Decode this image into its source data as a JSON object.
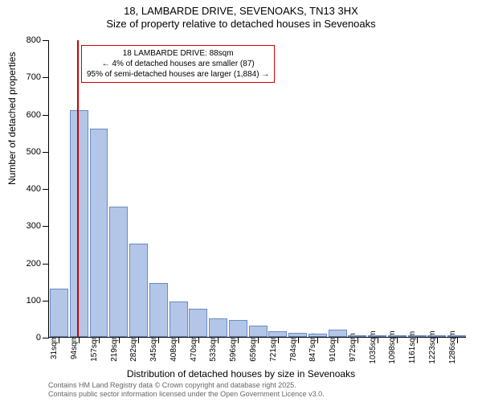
{
  "title_main": "18, LAMBARDE DRIVE, SEVENOAKS, TN13 3HX",
  "title_sub": "Size of property relative to detached houses in Sevenoaks",
  "y_axis_label": "Number of detached properties",
  "x_axis_label": "Distribution of detached houses by size in Sevenoaks",
  "chart": {
    "type": "histogram",
    "ylim": [
      0,
      800
    ],
    "ytick_step": 100,
    "bar_fill_color": "#b3c6e7",
    "bar_border_color": "#6a8bc0",
    "marker_color": "#cc0000",
    "background_color": "#ffffff",
    "marker_x_value": 88,
    "x_ticks": [
      31,
      94,
      157,
      219,
      282,
      345,
      408,
      470,
      533,
      596,
      659,
      721,
      784,
      847,
      910,
      972,
      1035,
      1098,
      1161,
      1223,
      1286
    ],
    "x_tick_unit": "sqm",
    "values": [
      130,
      610,
      560,
      350,
      250,
      145,
      95,
      75,
      50,
      45,
      30,
      15,
      10,
      8,
      20,
      5,
      5,
      3,
      2,
      2,
      1
    ]
  },
  "annotation": {
    "line1": "18 LAMBARDE DRIVE: 88sqm",
    "line2": "← 4% of detached houses are smaller (87)",
    "line3": "95% of semi-detached houses are larger (1,884) →"
  },
  "footer": {
    "line1": "Contains HM Land Registry data © Crown copyright and database right 2025.",
    "line2": "Contains public sector information licensed under the Open Government Licence v3.0."
  }
}
